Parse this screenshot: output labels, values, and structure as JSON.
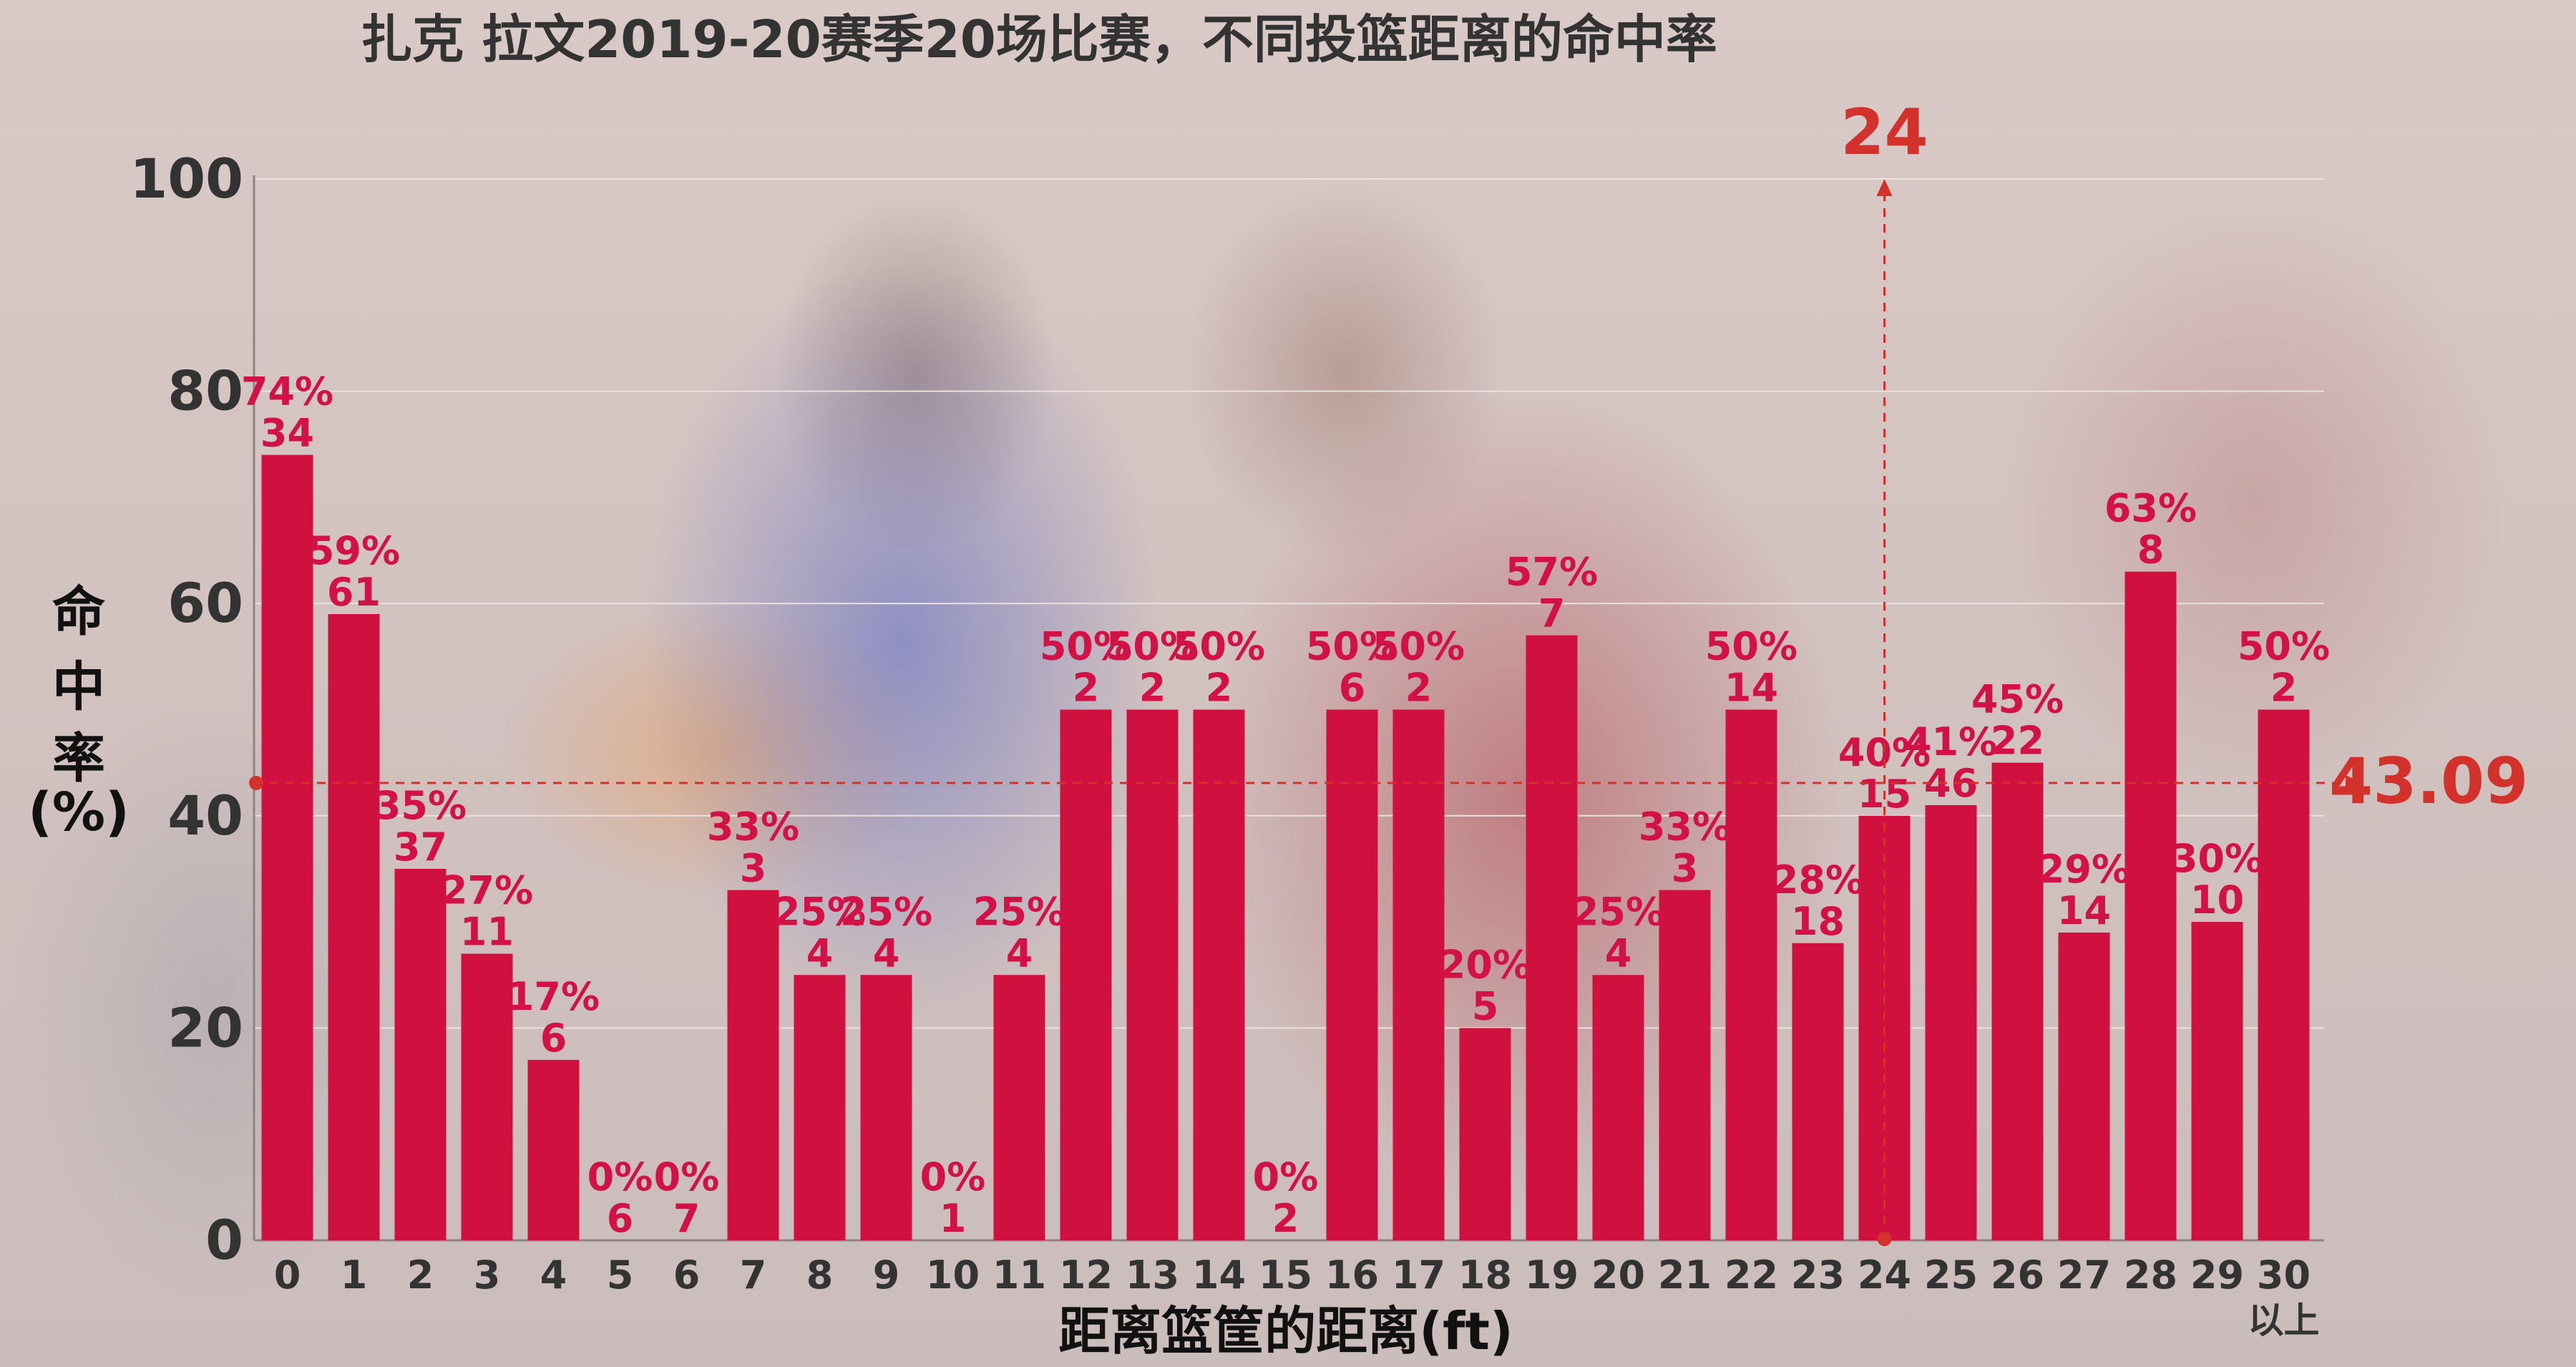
{
  "chart_data": {
    "type": "bar",
    "title": "扎克 拉文2019-20赛季20场比赛，不同投篮距离的命中率",
    "xlabel": "距离篮筐的距离(ft)",
    "ylabel": "命中率(%)",
    "ylabel_lines": [
      "命",
      "中",
      "率",
      "(%)"
    ],
    "ylim": [
      0,
      100
    ],
    "yticks": [
      "0",
      "20",
      "40",
      "60",
      "80",
      "100"
    ],
    "categories": [
      "0",
      "1",
      "2",
      "3",
      "4",
      "5",
      "6",
      "7",
      "8",
      "9",
      "10",
      "11",
      "12",
      "13",
      "14",
      "15",
      "16",
      "17",
      "18",
      "19",
      "20",
      "21",
      "22",
      "23",
      "24",
      "25",
      "26",
      "27",
      "28",
      "29",
      "30"
    ],
    "last_category_sublabel": "以上",
    "values": [
      74,
      59,
      35,
      27,
      17,
      0,
      0,
      33,
      25,
      25,
      0,
      25,
      50,
      50,
      50,
      0,
      50,
      50,
      20,
      57,
      25,
      33,
      50,
      28,
      40,
      41,
      45,
      29,
      63,
      30,
      50
    ],
    "percent_labels": [
      "74%",
      "59%",
      "35%",
      "27%",
      "17%",
      "0%",
      "0%",
      "33%",
      "25%",
      "25%",
      "0%",
      "25%",
      "50%",
      "50%",
      "50%",
      "0%",
      "50%",
      "50%",
      "20%",
      "57%",
      "25%",
      "33%",
      "50%",
      "28%",
      "40%",
      "41%",
      "45%",
      "29%",
      "63%",
      "30%",
      "50%"
    ],
    "attempts": [
      "34",
      "61",
      "37",
      "11",
      "6",
      "6",
      "7",
      "3",
      "4",
      "4",
      "1",
      "4",
      "2",
      "2",
      "2",
      "2",
      "6",
      "2",
      "5",
      "7",
      "4",
      "3",
      "14",
      "18",
      "15",
      "46",
      "22",
      "14",
      "8",
      "10",
      "2"
    ],
    "reference_lines": {
      "horizontal": {
        "value": 43.09,
        "label": "43.09"
      },
      "vertical": {
        "category": "24",
        "label": "24"
      }
    },
    "grid": true,
    "colors": {
      "bar": "#d0103f",
      "label": "#d21146",
      "reference": "#d3312b",
      "text": "#333333"
    }
  }
}
